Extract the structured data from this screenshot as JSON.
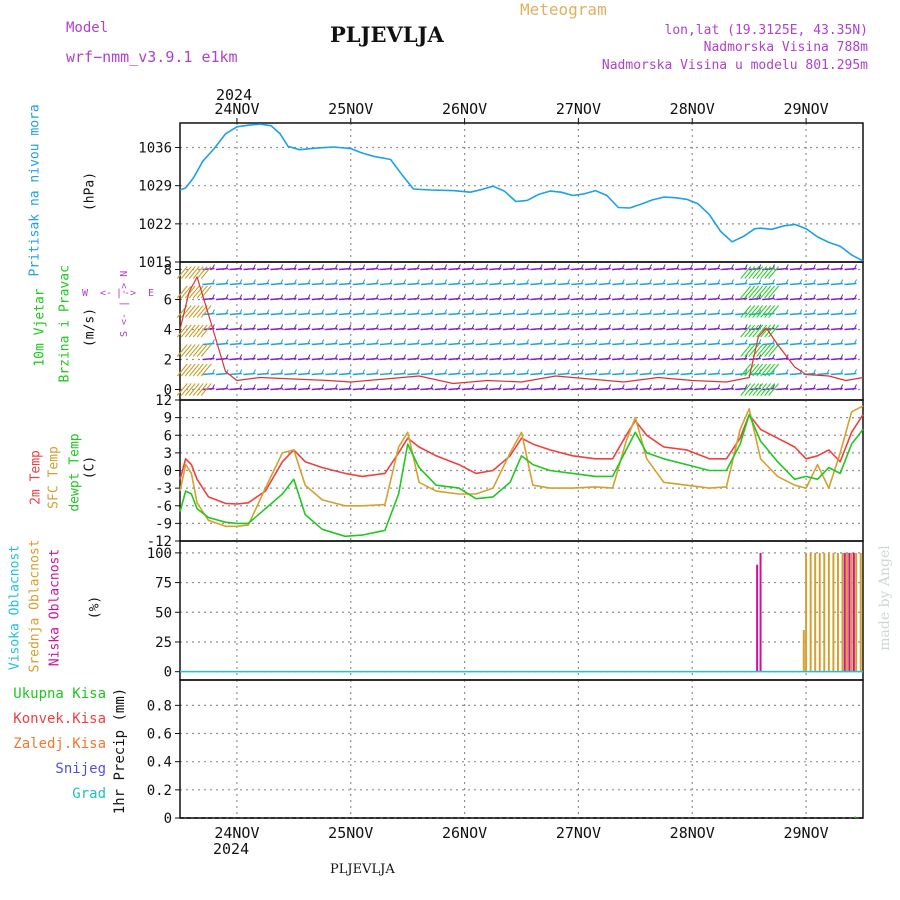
{
  "header": {
    "model_label": "Model",
    "model_name": "wrf−nmm_v3.9.1  e1km",
    "station": "PLJEVLJA",
    "product": "Meteogram",
    "coords": "lon,lat (19.3125E, 43.35N)",
    "elevation": "Nadmorska Visina 788m",
    "model_elevation": "Nadmorska Visina u modelu 801.295m",
    "footer_station": "PLJEVLJA",
    "credit": "made by Angel"
  },
  "colors": {
    "pressure": "#1ea0e6",
    "temp2m": "#f04040",
    "sfc_temp": "#d4a030",
    "dewpoint": "#20c820",
    "high_cloud": "#20c0e0",
    "mid_cloud": "#d4a030",
    "low_cloud": "#d0109a",
    "purple_text": "#b040d0",
    "orange_text": "#e0b060"
  },
  "chart_data": [
    {
      "type": "line",
      "name": "pressure",
      "ylabel_main": "Pritisak na nivou mora",
      "ylabel_unit": "(hPa)",
      "ylim": [
        1015,
        1040.5
      ],
      "yticks": [
        1015,
        1022,
        1029,
        1036
      ],
      "top_year": "2024",
      "top_dates": [
        "24NOV",
        "25NOV",
        "26NOV",
        "27NOV",
        "28NOV",
        "29NOV"
      ],
      "x_day_start": 23.5,
      "x_day_end": 29.5,
      "x": [
        23.5,
        23.55,
        23.62,
        23.7,
        23.8,
        23.9,
        24.0,
        24.1,
        24.2,
        24.3,
        24.38,
        24.45,
        24.55,
        24.7,
        24.85,
        25.0,
        25.1,
        25.2,
        25.35,
        25.45,
        25.55,
        25.7,
        25.9,
        26.05,
        26.15,
        26.25,
        26.35,
        26.45,
        26.55,
        26.65,
        26.75,
        26.85,
        26.95,
        27.05,
        27.15,
        27.25,
        27.35,
        27.45,
        27.55,
        27.65,
        27.75,
        27.85,
        27.95,
        28.05,
        28.15,
        28.25,
        28.35,
        28.45,
        28.55,
        28.6,
        28.7,
        28.8,
        28.9,
        29.0,
        29.1,
        29.2,
        29.3,
        29.4,
        29.5
      ],
      "y": [
        1028.2,
        1028.6,
        1030.5,
        1033.5,
        1035.8,
        1038.5,
        1039.8,
        1040.1,
        1040.3,
        1040.0,
        1038.5,
        1036.2,
        1035.6,
        1035.9,
        1036.1,
        1035.8,
        1035.0,
        1034.4,
        1033.8,
        1031.0,
        1028.4,
        1028.2,
        1028.1,
        1027.8,
        1028.3,
        1028.9,
        1028.0,
        1026.1,
        1026.3,
        1027.4,
        1028.0,
        1027.8,
        1027.2,
        1027.5,
        1028.1,
        1027.2,
        1025.0,
        1024.9,
        1025.6,
        1026.4,
        1026.9,
        1026.8,
        1026.5,
        1025.7,
        1023.7,
        1020.6,
        1018.7,
        1019.7,
        1021.1,
        1021.2,
        1021.0,
        1021.6,
        1021.9,
        1021.1,
        1019.6,
        1018.6,
        1017.9,
        1016.3,
        1015.2
      ]
    },
    {
      "type": "line",
      "name": "wind",
      "ylabel_main": "10m Vjetar",
      "ylabel_sub": "Brzina i Pravac",
      "ylabel_unit": "(m/s)",
      "ylim": [
        -0.7,
        8.5
      ],
      "yticks": [
        0,
        2,
        4,
        6,
        8
      ],
      "compass_labels": [
        "W",
        "<-",
        "|",
        "->",
        "E"
      ],
      "compass_ns": [
        "S <- | -> N"
      ],
      "x": [
        23.5,
        23.58,
        23.65,
        23.75,
        23.9,
        24.0,
        24.2,
        24.5,
        24.8,
        25.0,
        25.3,
        25.6,
        25.9,
        26.2,
        26.5,
        26.8,
        27.1,
        27.4,
        27.7,
        28.0,
        28.3,
        28.5,
        28.58,
        28.65,
        28.75,
        28.9,
        29.0,
        29.2,
        29.35,
        29.5
      ],
      "y": [
        4.0,
        6.5,
        7.5,
        5.0,
        1.2,
        0.6,
        0.8,
        0.7,
        0.6,
        0.5,
        0.7,
        0.9,
        0.4,
        0.6,
        0.5,
        0.9,
        0.7,
        0.5,
        0.8,
        0.6,
        0.5,
        0.8,
        3.5,
        4.1,
        3.0,
        1.5,
        1.0,
        0.9,
        0.6,
        0.8
      ]
    },
    {
      "type": "line",
      "name": "temperature",
      "ylabel_main": "2m Temp",
      "ylabel_sub": "SFC Temp",
      "ylabel_sub2": "dewpt Temp",
      "ylabel_unit": "(C)",
      "ylim": [
        -12,
        12
      ],
      "yticks": [
        -12,
        -9,
        -6,
        -3,
        0,
        3,
        6,
        9,
        12
      ],
      "x": [
        23.5,
        23.55,
        23.6,
        23.65,
        23.75,
        23.9,
        24.0,
        24.1,
        24.25,
        24.4,
        24.5,
        24.6,
        24.75,
        24.95,
        25.1,
        25.3,
        25.42,
        25.5,
        25.6,
        25.75,
        25.95,
        26.1,
        26.25,
        26.4,
        26.5,
        26.6,
        26.75,
        26.95,
        27.15,
        27.3,
        27.42,
        27.5,
        27.6,
        27.75,
        27.95,
        28.15,
        28.3,
        28.42,
        28.5,
        28.6,
        28.75,
        28.9,
        29.0,
        29.1,
        29.2,
        29.3,
        29.4,
        29.5
      ],
      "series": [
        {
          "name": "2m Temp",
          "values": [
            -1.5,
            2.0,
            1.0,
            -1.5,
            -4.5,
            -5.6,
            -5.7,
            -5.5,
            -3.5,
            1.5,
            3.5,
            1.5,
            0.5,
            -0.5,
            -1.0,
            -0.5,
            3.0,
            5.5,
            4.0,
            2.5,
            1.0,
            -0.5,
            0.0,
            2.5,
            5.5,
            4.5,
            3.5,
            2.5,
            2.0,
            2.0,
            6.0,
            8.5,
            6.0,
            4.0,
            3.5,
            2.0,
            2.0,
            5.5,
            9.5,
            7.0,
            5.5,
            4.0,
            2.0,
            2.5,
            3.5,
            1.5,
            6.5,
            9.5
          ]
        },
        {
          "name": "SFC Temp",
          "values": [
            -3.5,
            1.0,
            -0.5,
            -5.5,
            -8.5,
            -9.5,
            -9.5,
            -9.3,
            -3.0,
            3.0,
            3.5,
            -2.5,
            -5.0,
            -6.0,
            -6.0,
            -5.8,
            4.0,
            6.5,
            -2.0,
            -3.5,
            -4.0,
            -4.0,
            -3.0,
            3.0,
            6.5,
            -2.5,
            -3.0,
            -3.0,
            -2.8,
            -3.0,
            5.0,
            9.0,
            2.0,
            -2.0,
            -2.5,
            -3.0,
            -2.8,
            7.0,
            10.5,
            2.0,
            -1.0,
            -2.5,
            -3.0,
            1.0,
            -3.0,
            3.0,
            10.0,
            11.0
          ]
        },
        {
          "name": "dewpt Temp",
          "values": [
            -7.0,
            -3.5,
            -4.0,
            -6.5,
            -8.0,
            -8.8,
            -9.0,
            -9.0,
            -6.5,
            -4.0,
            -1.5,
            -7.5,
            -10.0,
            -11.2,
            -11.0,
            -10.2,
            -4.0,
            4.5,
            0.5,
            -2.5,
            -3.0,
            -4.8,
            -4.5,
            -2.0,
            2.5,
            1.0,
            0.0,
            -0.5,
            -1.0,
            -1.0,
            3.5,
            6.5,
            3.0,
            2.0,
            1.0,
            0.0,
            0.0,
            4.5,
            9.5,
            5.0,
            1.5,
            -1.5,
            -1.0,
            -1.5,
            0.5,
            -0.5,
            4.5,
            7.0
          ]
        }
      ]
    },
    {
      "type": "bar",
      "name": "cloud",
      "ylabel_high": "Visoka Oblacnost",
      "ylabel_mid": "Srednja Oblacnost",
      "ylabel_low": "Niska Oblacnost",
      "ylabel_unit": "(%)",
      "ylim": [
        -7,
        110
      ],
      "yticks": [
        0,
        25,
        50,
        75,
        100
      ],
      "series": [
        {
          "name": "Srednja Oblacnost",
          "x": [
            28.98,
            29.0,
            29.04,
            29.08,
            29.12,
            29.16,
            29.2,
            29.24,
            29.28,
            29.32,
            29.36,
            29.4,
            29.44,
            29.48
          ],
          "values": [
            35,
            100,
            100,
            100,
            100,
            100,
            100,
            100,
            100,
            100,
            100,
            100,
            100,
            100
          ]
        },
        {
          "name": "Niska Oblacnost",
          "x": [
            28.57,
            28.6,
            29.34,
            29.38,
            29.42
          ],
          "values": [
            90,
            100,
            100,
            100,
            100
          ]
        }
      ]
    },
    {
      "type": "line",
      "name": "precip",
      "ylabel_unit": "1hr Precip (mm)",
      "legend": [
        "Ukupna Kisa",
        "Konvek.Kisa",
        "Zaledj.Kisa",
        "Snijeg",
        "Grad"
      ],
      "ylim": [
        0,
        0.98
      ],
      "yticks": [
        0,
        0.2,
        0.4,
        0.6,
        0.8
      ],
      "bottom_dates": [
        "24NOV",
        "25NOV",
        "26NOV",
        "27NOV",
        "28NOV",
        "29NOV"
      ],
      "bottom_year": "2024"
    }
  ]
}
